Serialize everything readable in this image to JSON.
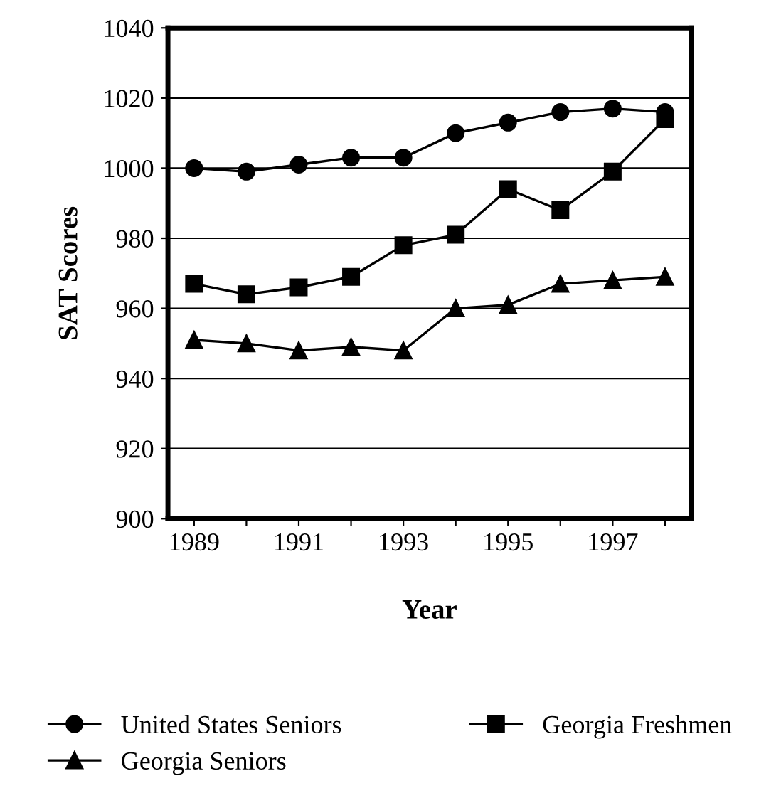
{
  "chart_data": {
    "type": "line",
    "xlabel": "Year",
    "ylabel": "SAT Scores",
    "categories": [
      "1989",
      null,
      "1991",
      null,
      "1993",
      null,
      "1995",
      null,
      "1997",
      null
    ],
    "series": [
      {
        "name": "United States Seniors",
        "color": "#000000",
        "marker": "circle",
        "values": [
          1000,
          999,
          1001,
          1003,
          1003,
          1010,
          1013,
          1016,
          1017,
          1016
        ]
      },
      {
        "name": "Georgia Freshmen",
        "color": "#000000",
        "marker": "square",
        "values": [
          967,
          964,
          966,
          969,
          978,
          981,
          994,
          988,
          999,
          1014
        ]
      },
      {
        "name": "Georgia Seniors",
        "color": "#000000",
        "marker": "triangle",
        "values": [
          951,
          950,
          948,
          949,
          948,
          960,
          961,
          967,
          968,
          969
        ]
      }
    ],
    "ylim": [
      900,
      1040
    ],
    "yticks": [
      900,
      920,
      940,
      960,
      980,
      1000,
      1020,
      1040
    ],
    "grid": "y",
    "legend": "bottom",
    "line_style": "solid"
  }
}
